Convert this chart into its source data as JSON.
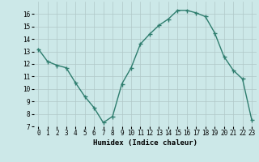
{
  "x": [
    0,
    1,
    2,
    3,
    4,
    5,
    6,
    7,
    8,
    9,
    10,
    11,
    12,
    13,
    14,
    15,
    16,
    17,
    18,
    19,
    20,
    21,
    22,
    23
  ],
  "y": [
    13.2,
    12.2,
    11.9,
    11.7,
    10.5,
    9.4,
    8.5,
    7.3,
    7.8,
    10.4,
    11.7,
    13.6,
    14.4,
    15.1,
    15.6,
    16.3,
    16.3,
    16.1,
    15.8,
    14.5,
    12.6,
    11.5,
    10.8,
    7.5
  ],
  "line_color": "#2e7d6e",
  "marker": "D",
  "marker_size": 1.8,
  "linewidth": 1.0,
  "xlabel": "Humidex (Indice chaleur)",
  "xlabel_fontsize": 6.5,
  "xlim": [
    -0.5,
    23.5
  ],
  "ylim": [
    7,
    17
  ],
  "yticks": [
    7,
    8,
    9,
    10,
    11,
    12,
    13,
    14,
    15,
    16
  ],
  "xticks": [
    0,
    1,
    2,
    3,
    4,
    5,
    6,
    7,
    8,
    9,
    10,
    11,
    12,
    13,
    14,
    15,
    16,
    17,
    18,
    19,
    20,
    21,
    22,
    23
  ],
  "bg_color": "#cce8e8",
  "grid_color": "#b0c8c8",
  "tick_fontsize": 5.5
}
